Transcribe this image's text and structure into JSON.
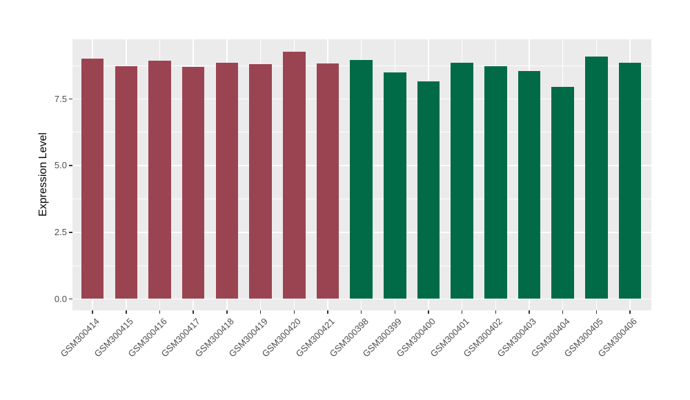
{
  "chart_data": {
    "type": "bar",
    "ylabel": "Expression Level",
    "xlabel": "",
    "legend": "none",
    "grid": true,
    "panel_background": "#EBEBEB",
    "gridline_color": "#FFFFFF",
    "axis_text_color": "#4D4D4D",
    "ylim": [
      -0.43,
      9.74
    ],
    "yticks": [
      0.0,
      2.5,
      5.0,
      7.5
    ],
    "ytick_labels": [
      "0.0",
      "2.5",
      "5.0",
      "7.5"
    ],
    "yticks_minor": [
      1.25,
      3.75,
      6.25,
      8.75
    ],
    "x_label_angle": 45,
    "categories": [
      "GSM300414",
      "GSM300415",
      "GSM300416",
      "GSM300417",
      "GSM300418",
      "GSM300419",
      "GSM300420",
      "GSM300421",
      "GSM300398",
      "GSM300399",
      "GSM300400",
      "GSM300401",
      "GSM300402",
      "GSM300403",
      "GSM300404",
      "GSM300405",
      "GSM300406"
    ],
    "series": [
      {
        "color": "#9A4452",
        "categories": [
          "GSM300414",
          "GSM300415",
          "GSM300416",
          "GSM300417",
          "GSM300418",
          "GSM300419",
          "GSM300420",
          "GSM300421"
        ],
        "values": [
          9.01,
          8.73,
          8.93,
          8.7,
          8.87,
          8.8,
          9.27,
          8.84
        ]
      },
      {
        "color": "#016B47",
        "categories": [
          "GSM300398",
          "GSM300399",
          "GSM300400",
          "GSM300401",
          "GSM300402",
          "GSM300403",
          "GSM300404",
          "GSM300405",
          "GSM300406"
        ],
        "values": [
          8.97,
          8.5,
          8.15,
          8.86,
          8.73,
          8.55,
          7.95,
          9.1,
          8.86
        ]
      }
    ]
  }
}
